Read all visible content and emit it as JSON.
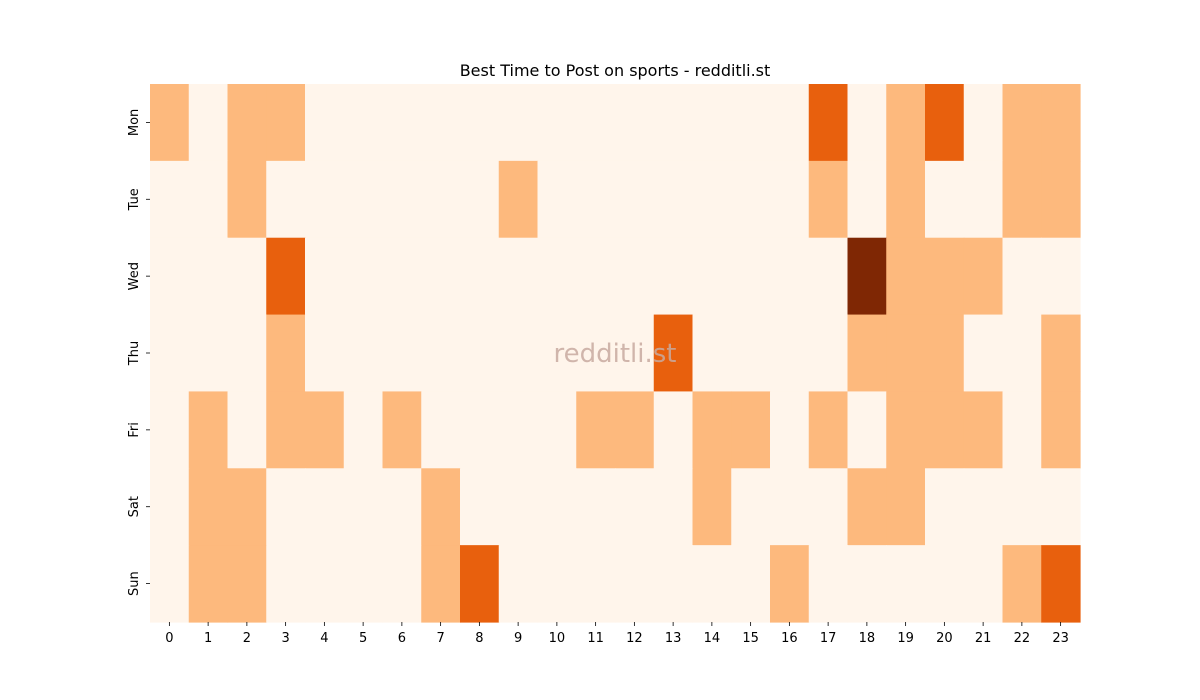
{
  "chart_data": {
    "type": "heatmap",
    "title": "Best Time to Post on sports - redditli.st",
    "watermark": "redditli.st",
    "x_categories": [
      "0",
      "1",
      "2",
      "3",
      "4",
      "5",
      "6",
      "7",
      "8",
      "9",
      "10",
      "11",
      "12",
      "13",
      "14",
      "15",
      "16",
      "17",
      "18",
      "19",
      "20",
      "21",
      "22",
      "23"
    ],
    "y_categories": [
      "Mon",
      "Tue",
      "Wed",
      "Thu",
      "Fri",
      "Sat",
      "Sun"
    ],
    "xlabel": "",
    "ylabel": "",
    "levels": [
      0,
      1,
      2,
      3
    ],
    "colors": [
      "#fff5eb",
      "#fdb97d",
      "#e8600d",
      "#7f2704"
    ],
    "values": [
      [
        1,
        0,
        1,
        1,
        0,
        0,
        0,
        0,
        0,
        0,
        0,
        0,
        0,
        0,
        0,
        0,
        0,
        2,
        0,
        1,
        2,
        0,
        1,
        1
      ],
      [
        0,
        0,
        1,
        0,
        0,
        0,
        0,
        0,
        0,
        1,
        0,
        0,
        0,
        0,
        0,
        0,
        0,
        1,
        0,
        1,
        0,
        0,
        1,
        1
      ],
      [
        0,
        0,
        0,
        2,
        0,
        0,
        0,
        0,
        0,
        0,
        0,
        0,
        0,
        0,
        0,
        0,
        0,
        0,
        3,
        1,
        1,
        1,
        0,
        0
      ],
      [
        0,
        0,
        0,
        1,
        0,
        0,
        0,
        0,
        0,
        0,
        0,
        0,
        0,
        2,
        0,
        0,
        0,
        0,
        1,
        1,
        1,
        0,
        0,
        1
      ],
      [
        0,
        1,
        0,
        1,
        1,
        0,
        1,
        0,
        0,
        0,
        0,
        1,
        1,
        0,
        1,
        1,
        0,
        1,
        0,
        1,
        1,
        1,
        0,
        1
      ],
      [
        0,
        1,
        1,
        0,
        0,
        0,
        0,
        1,
        0,
        0,
        0,
        0,
        0,
        0,
        1,
        0,
        0,
        0,
        1,
        1,
        0,
        0,
        0,
        0
      ],
      [
        0,
        1,
        1,
        0,
        0,
        0,
        0,
        1,
        2,
        0,
        0,
        0,
        0,
        0,
        0,
        0,
        1,
        0,
        0,
        0,
        0,
        0,
        1,
        2
      ]
    ]
  }
}
